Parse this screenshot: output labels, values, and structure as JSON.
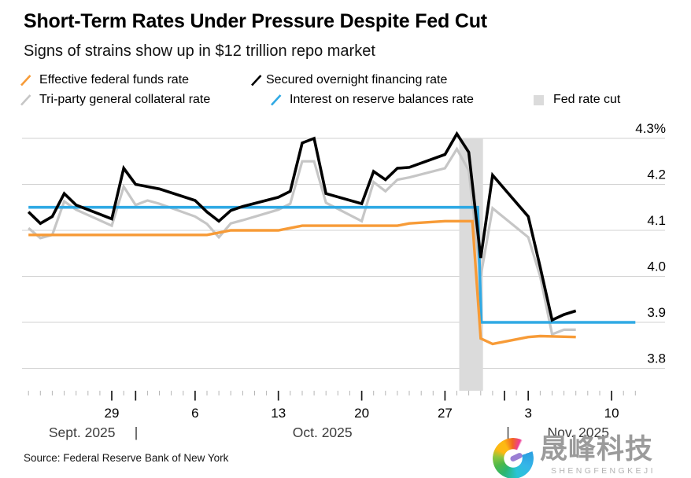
{
  "header": {
    "title": "Short-Term Rates Under Pressure Despite Fed Cut",
    "subtitle": "Signs of strains show up in $12 trillion repo market"
  },
  "legend": {
    "items": [
      {
        "id": "effr",
        "label": "Effective federal funds rate",
        "marker": "slash",
        "color": "#f79b37"
      },
      {
        "id": "sofr",
        "label": "Secured overnight financing rate",
        "marker": "slash",
        "color": "#000000"
      },
      {
        "id": "tgcr",
        "label": "Tri-party general collateral rate",
        "marker": "slash",
        "color": "#c6c6c6"
      },
      {
        "id": "iorb",
        "label": "Interest on reserve balances rate",
        "marker": "slash",
        "color": "#2fa9e4"
      },
      {
        "id": "fedcut",
        "label": "Fed rate cut",
        "marker": "square",
        "color": "#dbdbdb"
      }
    ]
  },
  "chart_data": {
    "type": "line",
    "title": "Short-Term Rates Under Pressure Despite Fed Cut",
    "subtitle": "Signs of strains show up in $12 trillion repo market",
    "x_unit": "calendar day offset from 2025-09-22",
    "grid": "horizontal-only",
    "legend_position": "top",
    "colors": {
      "effr": "#f79b37",
      "sofr": "#000000",
      "tgcr": "#c6c6c6",
      "iorb": "#2fa9e4",
      "fed_cut_band": "#dbdbdb",
      "gridline": "#d2d2d2"
    },
    "y_axis": {
      "side": "right",
      "range": [
        3.8,
        4.3
      ],
      "ticks": [
        {
          "v": 4.3,
          "label": "4.3%"
        },
        {
          "v": 4.2,
          "label": "4.2"
        },
        {
          "v": 4.1,
          "label": "4.1"
        },
        {
          "v": 4.0,
          "label": "4.0"
        },
        {
          "v": 3.9,
          "label": "3.9"
        },
        {
          "v": 3.8,
          "label": "3.8"
        }
      ]
    },
    "x_axis": {
      "minor_tick_every_day": true,
      "minor_range": [
        0,
        51
      ],
      "major_ticks": [
        {
          "offset": 7,
          "label": "29"
        },
        {
          "offset": 14,
          "label": "6"
        },
        {
          "offset": 21,
          "label": "13"
        },
        {
          "offset": 28,
          "label": "20"
        },
        {
          "offset": 35,
          "label": "27"
        },
        {
          "offset": 42,
          "label": "3"
        },
        {
          "offset": 49,
          "label": "10"
        }
      ],
      "month_boundary_ticks": [
        9,
        40
      ],
      "month_labels": [
        {
          "label": "Sept. 2025",
          "center_offset": 4.5
        },
        {
          "label": "Oct. 2025",
          "center_offset": 24.7
        },
        {
          "label": "Nov. 2025",
          "center_offset": 46.2
        }
      ],
      "separators": [
        {
          "label": "|",
          "offset": 9.05
        },
        {
          "label": "|",
          "offset": 40.3
        }
      ]
    },
    "fed_cut_band": {
      "label": "Fed rate cut",
      "start_offset": 36.2,
      "end_offset": 38.2,
      "top_value": 4.3
    },
    "series": [
      {
        "id": "tgcr",
        "name": "Tri-party general collateral rate",
        "color": "#c6c6c6",
        "width": 3.2,
        "points": [
          [
            0,
            4.105
          ],
          [
            1,
            4.083
          ],
          [
            2,
            4.09
          ],
          [
            3,
            4.163
          ],
          [
            4,
            4.145
          ],
          [
            7,
            4.11
          ],
          [
            8,
            4.195
          ],
          [
            9,
            4.155
          ],
          [
            10,
            4.165
          ],
          [
            11,
            4.158
          ],
          [
            14,
            4.13
          ],
          [
            15,
            4.114
          ],
          [
            16,
            4.085
          ],
          [
            17,
            4.115
          ],
          [
            18,
            4.122
          ],
          [
            21,
            4.145
          ],
          [
            22,
            4.158
          ],
          [
            23,
            4.25
          ],
          [
            24,
            4.25
          ],
          [
            25,
            4.16
          ],
          [
            28,
            4.12
          ],
          [
            29,
            4.205
          ],
          [
            30,
            4.185
          ],
          [
            31,
            4.21
          ],
          [
            32,
            4.215
          ],
          [
            35,
            4.235
          ],
          [
            36,
            4.277
          ],
          [
            37,
            4.23
          ],
          [
            38,
            4.0
          ],
          [
            39,
            4.148
          ],
          [
            42,
            4.085
          ],
          [
            43,
            4.0
          ],
          [
            44,
            3.874
          ],
          [
            45,
            3.884
          ],
          [
            46,
            3.884
          ]
        ]
      },
      {
        "id": "iorb",
        "name": "Interest on reserve balances rate",
        "color": "#2fa9e4",
        "width": 3.6,
        "points": [
          [
            0,
            4.15
          ],
          [
            37.75,
            4.15
          ],
          [
            38.05,
            3.9
          ],
          [
            51,
            3.9
          ]
        ]
      },
      {
        "id": "effr",
        "name": "Effective federal funds rate",
        "color": "#f79b37",
        "width": 3.4,
        "points": [
          [
            0,
            4.09
          ],
          [
            15,
            4.09
          ],
          [
            16,
            4.095
          ],
          [
            17,
            4.1
          ],
          [
            21,
            4.1
          ],
          [
            22,
            4.105
          ],
          [
            23,
            4.11
          ],
          [
            31,
            4.11
          ],
          [
            32,
            4.115
          ],
          [
            35,
            4.12
          ],
          [
            37.3,
            4.12
          ],
          [
            38,
            3.865
          ],
          [
            39,
            3.853
          ],
          [
            42,
            3.868
          ],
          [
            43,
            3.87
          ],
          [
            46,
            3.868
          ]
        ]
      },
      {
        "id": "sofr",
        "name": "Secured overnight financing rate",
        "color": "#000000",
        "width": 3.6,
        "points": [
          [
            0,
            4.14
          ],
          [
            1,
            4.115
          ],
          [
            2,
            4.13
          ],
          [
            3,
            4.18
          ],
          [
            4,
            4.155
          ],
          [
            7,
            4.125
          ],
          [
            8,
            4.235
          ],
          [
            9,
            4.2
          ],
          [
            10,
            4.195
          ],
          [
            11,
            4.19
          ],
          [
            14,
            4.165
          ],
          [
            15,
            4.14
          ],
          [
            16,
            4.12
          ],
          [
            17,
            4.143
          ],
          [
            18,
            4.152
          ],
          [
            21,
            4.172
          ],
          [
            22,
            4.185
          ],
          [
            23,
            4.29
          ],
          [
            24,
            4.3
          ],
          [
            25,
            4.18
          ],
          [
            28,
            4.158
          ],
          [
            29,
            4.228
          ],
          [
            30,
            4.21
          ],
          [
            31,
            4.235
          ],
          [
            32,
            4.237
          ],
          [
            35,
            4.265
          ],
          [
            36,
            4.31
          ],
          [
            37,
            4.27
          ],
          [
            38,
            4.04
          ],
          [
            39,
            4.22
          ],
          [
            42,
            4.13
          ],
          [
            43,
            4.02
          ],
          [
            44,
            3.905
          ],
          [
            45,
            3.917
          ],
          [
            46,
            3.925
          ]
        ]
      }
    ]
  },
  "footer": {
    "source": "Source: Federal Reserve Bank of New York",
    "logo": {
      "cn": "晟峰科技",
      "en": "SHENGFENGKEJI"
    }
  }
}
